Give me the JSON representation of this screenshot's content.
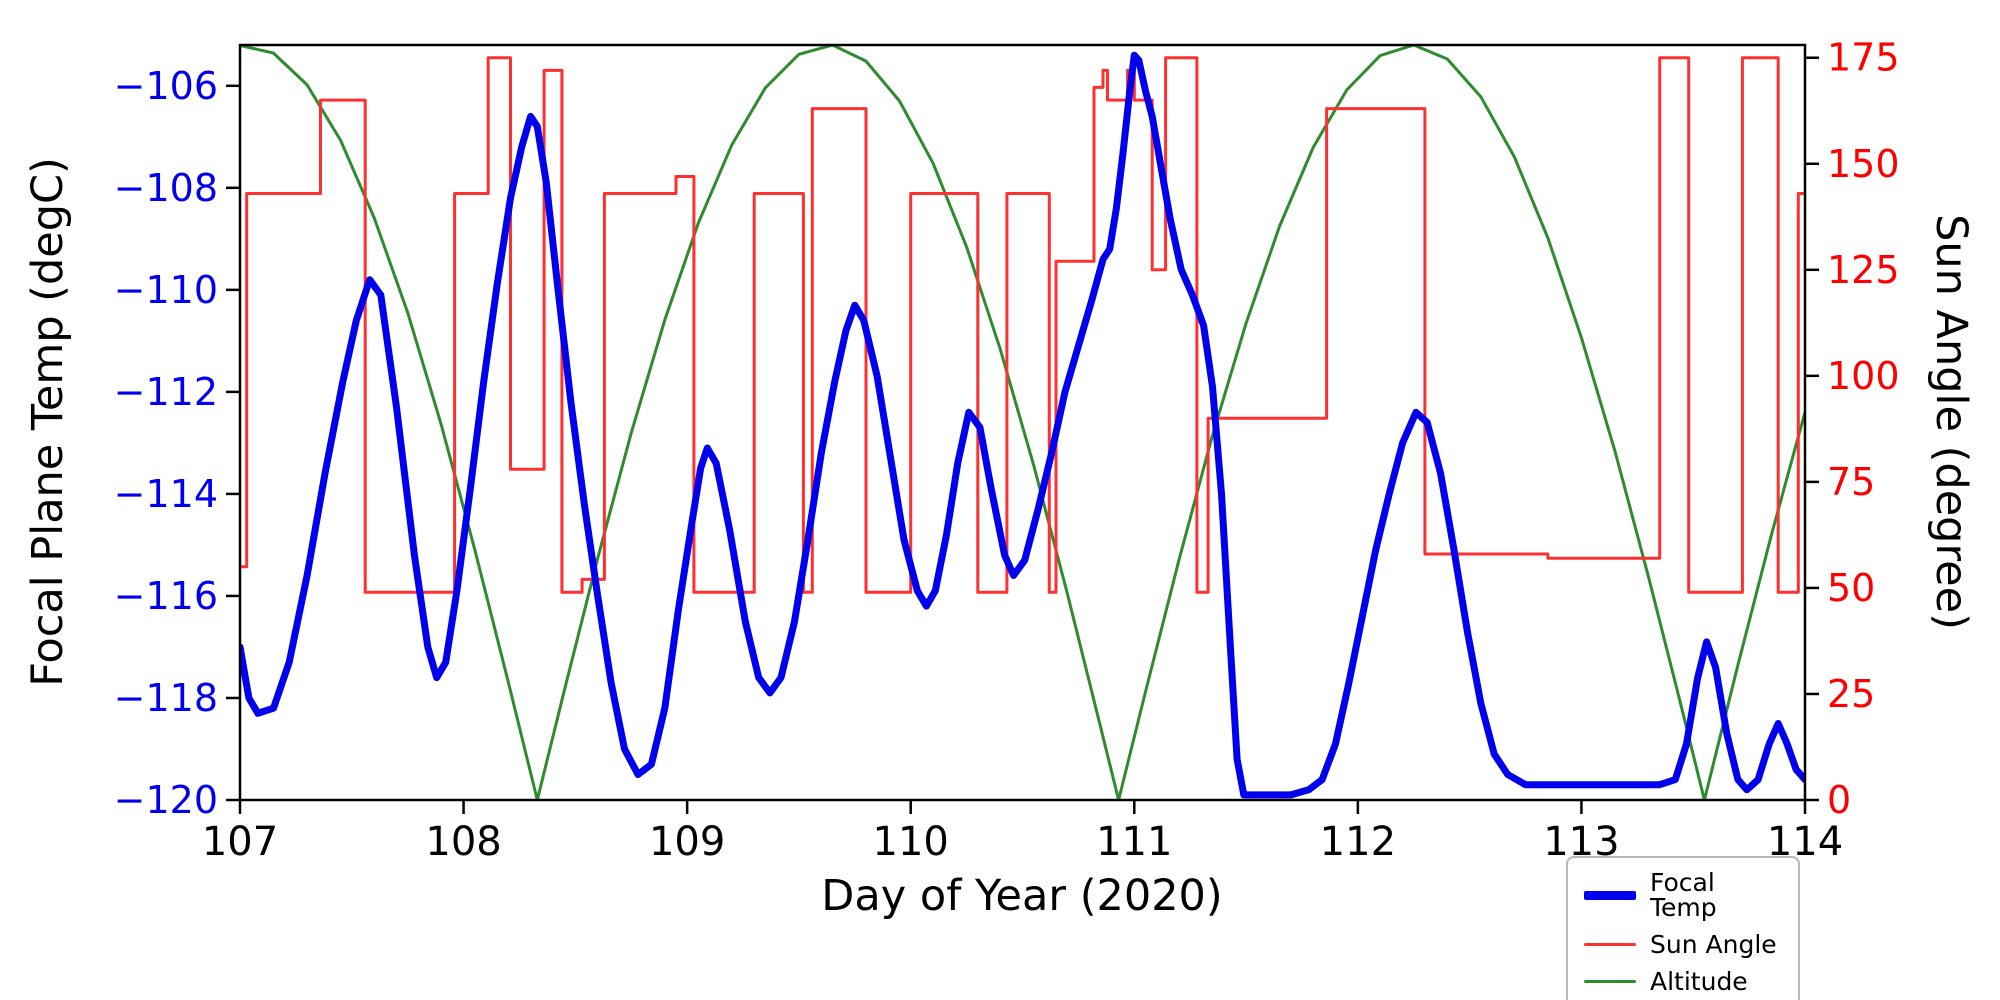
{
  "chart_data": {
    "type": "line",
    "title": "",
    "xlabel": "Day of Year (2020)",
    "ylabel_left": "Focal Plane Temp (degC)",
    "ylabel_right": "Sun Angle (degree)",
    "xlim": [
      107,
      114
    ],
    "ylim_left": [
      -120,
      -105.2
    ],
    "ylim_right": [
      0,
      178
    ],
    "xticks": [
      107,
      108,
      109,
      110,
      111,
      112,
      113,
      114
    ],
    "yticks_left": [
      -106,
      -108,
      -110,
      -112,
      -114,
      -116,
      -118,
      -120
    ],
    "yticks_right": [
      0,
      25,
      50,
      75,
      100,
      125,
      150,
      175
    ],
    "grid": false,
    "colors": {
      "left_axis_ticks": "#0000ee",
      "right_axis_ticks": "#ff0000",
      "spine": "#000000"
    },
    "legend": {
      "position": "lower right outside plot",
      "entries": [
        {
          "label": "Focal Temp"
        },
        {
          "label": "Sun Angle"
        },
        {
          "label": "Altitude"
        }
      ]
    },
    "series": [
      {
        "name": "Focal Temp",
        "axis": "left",
        "color": "#0000ee",
        "width": 7,
        "points": [
          [
            107.0,
            -117.0
          ],
          [
            107.04,
            -118.0
          ],
          [
            107.08,
            -118.3
          ],
          [
            107.15,
            -118.2
          ],
          [
            107.22,
            -117.3
          ],
          [
            107.3,
            -115.6
          ],
          [
            107.38,
            -113.6
          ],
          [
            107.46,
            -111.8
          ],
          [
            107.52,
            -110.6
          ],
          [
            107.58,
            -109.8
          ],
          [
            107.63,
            -110.1
          ],
          [
            107.7,
            -112.3
          ],
          [
            107.78,
            -115.2
          ],
          [
            107.84,
            -117.0
          ],
          [
            107.88,
            -117.6
          ],
          [
            107.92,
            -117.3
          ],
          [
            107.97,
            -115.9
          ],
          [
            108.03,
            -113.9
          ],
          [
            108.09,
            -111.8
          ],
          [
            108.15,
            -109.9
          ],
          [
            108.21,
            -108.2
          ],
          [
            108.26,
            -107.2
          ],
          [
            108.3,
            -106.6
          ],
          [
            108.33,
            -106.8
          ],
          [
            108.37,
            -107.9
          ],
          [
            108.42,
            -109.9
          ],
          [
            108.48,
            -112.2
          ],
          [
            108.54,
            -114.2
          ],
          [
            108.6,
            -116.0
          ],
          [
            108.66,
            -117.7
          ],
          [
            108.72,
            -119.0
          ],
          [
            108.78,
            -119.5
          ],
          [
            108.84,
            -119.3
          ],
          [
            108.9,
            -118.2
          ],
          [
            108.96,
            -116.3
          ],
          [
            109.02,
            -114.6
          ],
          [
            109.06,
            -113.5
          ],
          [
            109.09,
            -113.1
          ],
          [
            109.13,
            -113.4
          ],
          [
            109.19,
            -114.7
          ],
          [
            109.26,
            -116.5
          ],
          [
            109.32,
            -117.6
          ],
          [
            109.37,
            -117.9
          ],
          [
            109.42,
            -117.6
          ],
          [
            109.48,
            -116.5
          ],
          [
            109.54,
            -114.9
          ],
          [
            109.6,
            -113.2
          ],
          [
            109.66,
            -111.8
          ],
          [
            109.71,
            -110.8
          ],
          [
            109.75,
            -110.3
          ],
          [
            109.79,
            -110.6
          ],
          [
            109.85,
            -111.7
          ],
          [
            109.91,
            -113.3
          ],
          [
            109.97,
            -114.9
          ],
          [
            110.03,
            -115.9
          ],
          [
            110.07,
            -116.2
          ],
          [
            110.11,
            -115.9
          ],
          [
            110.16,
            -114.8
          ],
          [
            110.21,
            -113.4
          ],
          [
            110.26,
            -112.4
          ],
          [
            110.31,
            -112.7
          ],
          [
            110.36,
            -113.9
          ],
          [
            110.42,
            -115.2
          ],
          [
            110.46,
            -115.6
          ],
          [
            110.51,
            -115.3
          ],
          [
            110.57,
            -114.3
          ],
          [
            110.63,
            -113.2
          ],
          [
            110.69,
            -112.0
          ],
          [
            110.75,
            -111.1
          ],
          [
            110.81,
            -110.2
          ],
          [
            110.86,
            -109.4
          ],
          [
            110.89,
            -109.2
          ],
          [
            110.92,
            -108.4
          ],
          [
            110.95,
            -107.3
          ],
          [
            110.98,
            -106.1
          ],
          [
            111.0,
            -105.4
          ],
          [
            111.02,
            -105.5
          ],
          [
            111.05,
            -106.1
          ],
          [
            111.08,
            -106.6
          ],
          [
            111.12,
            -107.6
          ],
          [
            111.16,
            -108.6
          ],
          [
            111.21,
            -109.6
          ],
          [
            111.26,
            -110.1
          ],
          [
            111.31,
            -110.7
          ],
          [
            111.35,
            -111.9
          ],
          [
            111.39,
            -114.0
          ],
          [
            111.43,
            -117.0
          ],
          [
            111.46,
            -119.2
          ],
          [
            111.49,
            -119.9
          ],
          [
            111.55,
            -119.9
          ],
          [
            111.62,
            -119.9
          ],
          [
            111.7,
            -119.9
          ],
          [
            111.78,
            -119.8
          ],
          [
            111.84,
            -119.6
          ],
          [
            111.9,
            -118.9
          ],
          [
            111.96,
            -117.7
          ],
          [
            112.02,
            -116.4
          ],
          [
            112.08,
            -115.1
          ],
          [
            112.14,
            -114.0
          ],
          [
            112.2,
            -113.0
          ],
          [
            112.26,
            -112.4
          ],
          [
            112.31,
            -112.6
          ],
          [
            112.37,
            -113.6
          ],
          [
            112.43,
            -115.1
          ],
          [
            112.49,
            -116.7
          ],
          [
            112.55,
            -118.1
          ],
          [
            112.61,
            -119.1
          ],
          [
            112.67,
            -119.5
          ],
          [
            112.75,
            -119.7
          ],
          [
            112.85,
            -119.7
          ],
          [
            112.95,
            -119.7
          ],
          [
            113.05,
            -119.7
          ],
          [
            113.15,
            -119.7
          ],
          [
            113.25,
            -119.7
          ],
          [
            113.35,
            -119.7
          ],
          [
            113.42,
            -119.6
          ],
          [
            113.47,
            -118.9
          ],
          [
            113.52,
            -117.6
          ],
          [
            113.56,
            -116.9
          ],
          [
            113.6,
            -117.4
          ],
          [
            113.65,
            -118.7
          ],
          [
            113.7,
            -119.6
          ],
          [
            113.74,
            -119.8
          ],
          [
            113.79,
            -119.6
          ],
          [
            113.84,
            -118.9
          ],
          [
            113.88,
            -118.5
          ],
          [
            113.92,
            -118.9
          ],
          [
            113.96,
            -119.4
          ],
          [
            114.0,
            -119.6
          ]
        ]
      },
      {
        "name": "Sun Angle",
        "axis": "right",
        "color": "#ff3030",
        "width": 3,
        "points": [
          [
            107.0,
            55
          ],
          [
            107.03,
            55
          ],
          [
            107.03,
            143
          ],
          [
            107.36,
            143
          ],
          [
            107.36,
            165
          ],
          [
            107.56,
            165
          ],
          [
            107.56,
            49
          ],
          [
            107.96,
            49
          ],
          [
            107.96,
            143
          ],
          [
            108.11,
            143
          ],
          [
            108.11,
            175
          ],
          [
            108.21,
            175
          ],
          [
            108.21,
            78
          ],
          [
            108.36,
            78
          ],
          [
            108.36,
            172
          ],
          [
            108.44,
            172
          ],
          [
            108.44,
            49
          ],
          [
            108.53,
            49
          ],
          [
            108.53,
            52
          ],
          [
            108.63,
            52
          ],
          [
            108.63,
            143
          ],
          [
            108.95,
            143
          ],
          [
            108.95,
            147
          ],
          [
            109.03,
            147
          ],
          [
            109.03,
            49
          ],
          [
            109.3,
            49
          ],
          [
            109.3,
            143
          ],
          [
            109.52,
            143
          ],
          [
            109.52,
            49
          ],
          [
            109.56,
            49
          ],
          [
            109.56,
            163
          ],
          [
            109.8,
            163
          ],
          [
            109.8,
            49
          ],
          [
            110.0,
            49
          ],
          [
            110.0,
            143
          ],
          [
            110.3,
            143
          ],
          [
            110.3,
            49
          ],
          [
            110.43,
            49
          ],
          [
            110.43,
            143
          ],
          [
            110.62,
            143
          ],
          [
            110.62,
            49
          ],
          [
            110.65,
            49
          ],
          [
            110.65,
            127
          ],
          [
            110.82,
            127
          ],
          [
            110.82,
            168
          ],
          [
            110.86,
            168
          ],
          [
            110.86,
            172
          ],
          [
            110.88,
            172
          ],
          [
            110.88,
            165
          ],
          [
            110.97,
            165
          ],
          [
            110.97,
            172
          ],
          [
            111.0,
            172
          ],
          [
            111.0,
            165
          ],
          [
            111.08,
            165
          ],
          [
            111.08,
            125
          ],
          [
            111.14,
            125
          ],
          [
            111.14,
            175
          ],
          [
            111.28,
            175
          ],
          [
            111.28,
            49
          ],
          [
            111.33,
            49
          ],
          [
            111.33,
            90
          ],
          [
            111.86,
            90
          ],
          [
            111.86,
            163
          ],
          [
            112.3,
            163
          ],
          [
            112.3,
            58
          ],
          [
            112.85,
            58
          ],
          [
            112.85,
            57
          ],
          [
            113.35,
            57
          ],
          [
            113.35,
            175
          ],
          [
            113.48,
            175
          ],
          [
            113.48,
            49
          ],
          [
            113.72,
            49
          ],
          [
            113.72,
            175
          ],
          [
            113.88,
            175
          ],
          [
            113.88,
            49
          ],
          [
            113.97,
            49
          ],
          [
            113.97,
            143
          ],
          [
            114.0,
            143
          ]
        ]
      },
      {
        "name": "Altitude",
        "axis": "right",
        "color": "#2e8b2e",
        "width": 3,
        "points": [
          [
            107.0,
            177.9
          ],
          [
            107.15,
            176.1
          ],
          [
            107.3,
            168.6
          ],
          [
            107.45,
            155.5
          ],
          [
            107.6,
            137.3
          ],
          [
            107.75,
            114.9
          ],
          [
            107.9,
            88.5
          ],
          [
            108.05,
            59.1
          ],
          [
            108.2,
            27.8
          ],
          [
            108.33,
            0
          ],
          [
            108.45,
            25.7
          ],
          [
            108.6,
            57.0
          ],
          [
            108.75,
            86.6
          ],
          [
            108.9,
            113.2
          ],
          [
            109.05,
            136.0
          ],
          [
            109.2,
            154.5
          ],
          [
            109.35,
            167.9
          ],
          [
            109.5,
            175.8
          ],
          [
            109.65,
            178.0
          ],
          [
            109.8,
            174.2
          ],
          [
            109.95,
            164.8
          ],
          [
            110.1,
            150.1
          ],
          [
            110.25,
            130.4
          ],
          [
            110.4,
            106.4
          ],
          [
            110.55,
            78.9
          ],
          [
            110.7,
            48.8
          ],
          [
            110.85,
            17.1
          ],
          [
            110.93,
            0
          ],
          [
            111.05,
            25.5
          ],
          [
            111.2,
            56.6
          ],
          [
            111.35,
            86.0
          ],
          [
            111.5,
            112.4
          ],
          [
            111.65,
            135.3
          ],
          [
            111.8,
            153.8
          ],
          [
            111.95,
            167.4
          ],
          [
            112.1,
            175.5
          ],
          [
            112.25,
            178.0
          ],
          [
            112.4,
            174.7
          ],
          [
            112.55,
            165.8
          ],
          [
            112.7,
            151.6
          ],
          [
            112.85,
            132.5
          ],
          [
            113.0,
            109.0
          ],
          [
            113.15,
            82.2
          ],
          [
            113.3,
            52.6
          ],
          [
            113.45,
            21.4
          ],
          [
            113.55,
            0
          ],
          [
            113.7,
            31.8
          ],
          [
            113.85,
            62.6
          ],
          [
            114.0,
            91.4
          ]
        ]
      }
    ]
  }
}
